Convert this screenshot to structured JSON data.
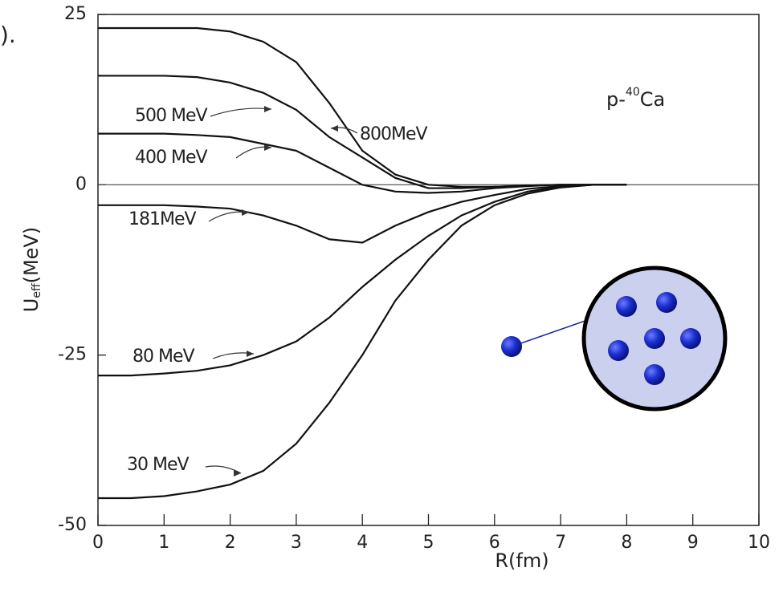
{
  "cropped_text": ").",
  "chart_data": {
    "type": "line",
    "xlabel": "R(fm)",
    "ylabel": {
      "main": "U",
      "sub": "eff",
      "unit": "(MeV)"
    },
    "annotation": {
      "before": "p-",
      "sup": "40",
      "after": "Ca"
    },
    "xlim": [
      0,
      10
    ],
    "xticks": [
      0,
      1,
      2,
      3,
      4,
      5,
      6,
      7,
      8,
      9,
      10
    ],
    "ylim": [
      -50,
      25
    ],
    "yticks": [
      -50,
      -25,
      0,
      25
    ],
    "x": [
      0,
      0.5,
      1,
      1.5,
      2,
      2.5,
      3,
      3.5,
      4,
      4.5,
      5,
      5.5,
      6,
      6.5,
      7,
      7.5,
      8
    ],
    "series": [
      {
        "name": "800MeV",
        "color": "#111111",
        "values": [
          23,
          23,
          23,
          23,
          22.5,
          21,
          18,
          12,
          5,
          1.5,
          0,
          -0.3,
          -0.3,
          -0.1,
          0,
          0,
          0
        ]
      },
      {
        "name": "500 MeV",
        "color": "#111111",
        "values": [
          16,
          16,
          16,
          15.8,
          15,
          13.5,
          11,
          7,
          4,
          1,
          -0.5,
          -0.5,
          -0.3,
          -0.1,
          0,
          0,
          0
        ]
      },
      {
        "name": "400 MeV",
        "color": "#111111",
        "values": [
          7.5,
          7.5,
          7.5,
          7.3,
          7,
          6,
          5,
          2.5,
          0,
          -1,
          -1.2,
          -1,
          -0.5,
          -0.2,
          0,
          0,
          0
        ]
      },
      {
        "name": "181MeV",
        "color": "#111111",
        "values": [
          -3,
          -3,
          -3,
          -3.2,
          -3.5,
          -4.5,
          -6,
          -8,
          -8.5,
          -6,
          -4,
          -2.5,
          -1.5,
          -0.6,
          -0.2,
          0,
          0
        ]
      },
      {
        "name": "80 MeV",
        "color": "#111111",
        "values": [
          -28,
          -28,
          -27.7,
          -27.3,
          -26.5,
          -25,
          -23,
          -19.5,
          -15,
          -11,
          -7.5,
          -4.5,
          -2.5,
          -1,
          -0.3,
          0,
          0
        ]
      },
      {
        "name": "30 MeV",
        "color": "#111111",
        "values": [
          -46,
          -46,
          -45.7,
          -45,
          -44,
          -42,
          -38,
          -32,
          -25,
          -17,
          -11,
          -6,
          -3,
          -1.3,
          -0.4,
          0,
          0
        ]
      }
    ]
  }
}
